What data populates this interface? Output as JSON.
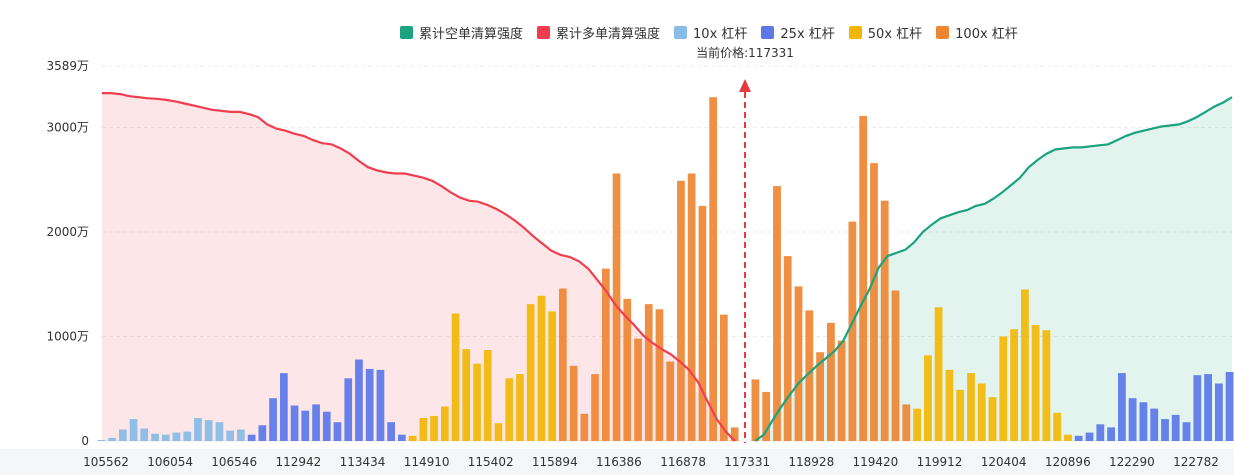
{
  "chart_data": {
    "type": "bar",
    "title": "",
    "ylim": [
      0,
      3589
    ],
    "y_ticks": [
      {
        "v": 0,
        "label": "0"
      },
      {
        "v": 1000,
        "label": "1000万"
      },
      {
        "v": 2000,
        "label": "2000万"
      },
      {
        "v": 3000,
        "label": "3000万"
      },
      {
        "v": 3589,
        "label": "3589万"
      }
    ],
    "x_tick_labels": [
      "105562",
      "106054",
      "106546",
      "112942",
      "113434",
      "114910",
      "115402",
      "115894",
      "116386",
      "116878",
      "117331",
      "118928",
      "119420",
      "119912",
      "120404",
      "120896",
      "122290",
      "122782"
    ],
    "current_price_label": "当前价格:117331",
    "legend": [
      {
        "key": "short_cum",
        "label": "累计空单清算强度",
        "color": "#1aa37e"
      },
      {
        "key": "long_cum",
        "label": "累计多单清算强度",
        "color": "#f03e4e"
      },
      {
        "key": "lev10",
        "label": "10x 杠杆",
        "color": "#86bce6"
      },
      {
        "key": "lev25",
        "label": "25x 杠杆",
        "color": "#5b77e8"
      },
      {
        "key": "lev50",
        "label": "50x 杠杆",
        "color": "#f2b705"
      },
      {
        "key": "lev100",
        "label": "100x 杠杆",
        "color": "#ee8533"
      }
    ],
    "bars_left": [
      {
        "v": 10,
        "s": "lev10"
      },
      {
        "v": 30,
        "s": "lev10"
      },
      {
        "v": 110,
        "s": "lev10"
      },
      {
        "v": 210,
        "s": "lev10"
      },
      {
        "v": 120,
        "s": "lev10"
      },
      {
        "v": 70,
        "s": "lev10"
      },
      {
        "v": 60,
        "s": "lev10"
      },
      {
        "v": 80,
        "s": "lev10"
      },
      {
        "v": 90,
        "s": "lev10"
      },
      {
        "v": 220,
        "s": "lev10"
      },
      {
        "v": 200,
        "s": "lev10"
      },
      {
        "v": 180,
        "s": "lev10"
      },
      {
        "v": 100,
        "s": "lev10"
      },
      {
        "v": 110,
        "s": "lev10"
      },
      {
        "v": 60,
        "s": "lev25"
      },
      {
        "v": 150,
        "s": "lev25"
      },
      {
        "v": 410,
        "s": "lev25"
      },
      {
        "v": 650,
        "s": "lev25"
      },
      {
        "v": 340,
        "s": "lev25"
      },
      {
        "v": 290,
        "s": "lev25"
      },
      {
        "v": 350,
        "s": "lev25"
      },
      {
        "v": 280,
        "s": "lev25"
      },
      {
        "v": 180,
        "s": "lev25"
      },
      {
        "v": 600,
        "s": "lev25"
      },
      {
        "v": 780,
        "s": "lev25"
      },
      {
        "v": 690,
        "s": "lev25"
      },
      {
        "v": 680,
        "s": "lev25"
      },
      {
        "v": 180,
        "s": "lev25"
      },
      {
        "v": 60,
        "s": "lev25"
      },
      {
        "v": 50,
        "s": "lev50"
      },
      {
        "v": 220,
        "s": "lev50"
      },
      {
        "v": 240,
        "s": "lev50"
      },
      {
        "v": 330,
        "s": "lev50"
      },
      {
        "v": 1220,
        "s": "lev50"
      },
      {
        "v": 880,
        "s": "lev50"
      },
      {
        "v": 740,
        "s": "lev50"
      },
      {
        "v": 870,
        "s": "lev50"
      },
      {
        "v": 170,
        "s": "lev50"
      },
      {
        "v": 600,
        "s": "lev50"
      },
      {
        "v": 640,
        "s": "lev50"
      },
      {
        "v": 1310,
        "s": "lev50"
      },
      {
        "v": 1390,
        "s": "lev50"
      },
      {
        "v": 1240,
        "s": "lev50"
      },
      {
        "v": 1460,
        "s": "lev100"
      },
      {
        "v": 720,
        "s": "lev100"
      },
      {
        "v": 260,
        "s": "lev100"
      },
      {
        "v": 640,
        "s": "lev100"
      },
      {
        "v": 1650,
        "s": "lev100"
      },
      {
        "v": 2560,
        "s": "lev100"
      },
      {
        "v": 1360,
        "s": "lev100"
      },
      {
        "v": 980,
        "s": "lev100"
      },
      {
        "v": 1310,
        "s": "lev100"
      },
      {
        "v": 1260,
        "s": "lev100"
      },
      {
        "v": 760,
        "s": "lev100"
      },
      {
        "v": 2490,
        "s": "lev100"
      },
      {
        "v": 2560,
        "s": "lev100"
      },
      {
        "v": 2250,
        "s": "lev100"
      },
      {
        "v": 3290,
        "s": "lev100"
      },
      {
        "v": 1210,
        "s": "lev100"
      },
      {
        "v": 130,
        "s": "lev100"
      }
    ],
    "bars_right": [
      {
        "v": 590,
        "s": "lev100"
      },
      {
        "v": 470,
        "s": "lev100"
      },
      {
        "v": 2440,
        "s": "lev100"
      },
      {
        "v": 1770,
        "s": "lev100"
      },
      {
        "v": 1480,
        "s": "lev100"
      },
      {
        "v": 1250,
        "s": "lev100"
      },
      {
        "v": 850,
        "s": "lev100"
      },
      {
        "v": 1130,
        "s": "lev100"
      },
      {
        "v": 960,
        "s": "lev100"
      },
      {
        "v": 2100,
        "s": "lev100"
      },
      {
        "v": 3110,
        "s": "lev100"
      },
      {
        "v": 2660,
        "s": "lev100"
      },
      {
        "v": 2300,
        "s": "lev100"
      },
      {
        "v": 1440,
        "s": "lev100"
      },
      {
        "v": 350,
        "s": "lev100"
      },
      {
        "v": 310,
        "s": "lev50"
      },
      {
        "v": 820,
        "s": "lev50"
      },
      {
        "v": 1280,
        "s": "lev50"
      },
      {
        "v": 680,
        "s": "lev50"
      },
      {
        "v": 490,
        "s": "lev50"
      },
      {
        "v": 650,
        "s": "lev50"
      },
      {
        "v": 550,
        "s": "lev50"
      },
      {
        "v": 420,
        "s": "lev50"
      },
      {
        "v": 1000,
        "s": "lev50"
      },
      {
        "v": 1070,
        "s": "lev50"
      },
      {
        "v": 1450,
        "s": "lev50"
      },
      {
        "v": 1110,
        "s": "lev50"
      },
      {
        "v": 1060,
        "s": "lev50"
      },
      {
        "v": 270,
        "s": "lev50"
      },
      {
        "v": 60,
        "s": "lev50"
      },
      {
        "v": 50,
        "s": "lev25"
      },
      {
        "v": 80,
        "s": "lev25"
      },
      {
        "v": 160,
        "s": "lev25"
      },
      {
        "v": 130,
        "s": "lev25"
      },
      {
        "v": 650,
        "s": "lev25"
      },
      {
        "v": 410,
        "s": "lev25"
      },
      {
        "v": 370,
        "s": "lev25"
      },
      {
        "v": 310,
        "s": "lev25"
      },
      {
        "v": 210,
        "s": "lev25"
      },
      {
        "v": 250,
        "s": "lev25"
      },
      {
        "v": 180,
        "s": "lev25"
      },
      {
        "v": 630,
        "s": "lev25"
      },
      {
        "v": 640,
        "s": "lev25"
      },
      {
        "v": 550,
        "s": "lev25"
      },
      {
        "v": 660,
        "s": "lev25"
      }
    ],
    "long_cum_curve": [
      3330,
      3330,
      3320,
      3300,
      3290,
      3280,
      3275,
      3265,
      3250,
      3230,
      3210,
      3190,
      3170,
      3160,
      3150,
      3150,
      3130,
      3100,
      3030,
      2990,
      2970,
      2940,
      2920,
      2880,
      2850,
      2840,
      2800,
      2750,
      2680,
      2620,
      2590,
      2570,
      2560,
      2560,
      2540,
      2520,
      2490,
      2440,
      2380,
      2330,
      2300,
      2290,
      2260,
      2220,
      2170,
      2110,
      2040,
      1960,
      1890,
      1820,
      1780,
      1760,
      1720,
      1650,
      1540,
      1430,
      1300,
      1200,
      1110,
      1010,
      940,
      880,
      830,
      760,
      680,
      560,
      380,
      210,
      90,
      0
    ],
    "short_cum_curve": [
      0,
      60,
      200,
      330,
      450,
      560,
      640,
      720,
      790,
      860,
      960,
      1130,
      1300,
      1460,
      1660,
      1770,
      1800,
      1830,
      1900,
      2000,
      2070,
      2130,
      2160,
      2190,
      2210,
      2250,
      2270,
      2320,
      2380,
      2450,
      2520,
      2620,
      2690,
      2750,
      2790,
      2800,
      2810,
      2810,
      2820,
      2830,
      2840,
      2880,
      2920,
      2950,
      2970,
      2990,
      3010,
      3020,
      3030,
      3060,
      3100,
      3150,
      3200,
      3240,
      3290
    ]
  }
}
